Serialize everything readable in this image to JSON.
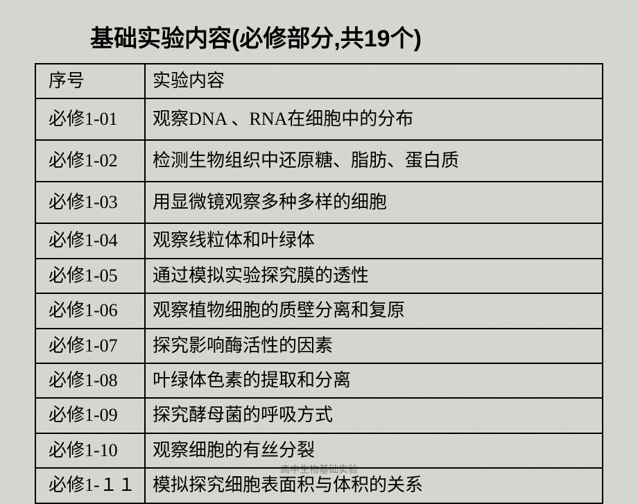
{
  "title": "基础实验内容(必修部分,共19个)",
  "columns": [
    "序号",
    "实验内容"
  ],
  "rows": [
    {
      "id": "必修1-01",
      "content": "观察DNA 、RNA在细胞中的分布",
      "height": "tall"
    },
    {
      "id": "必修1-02",
      "content": "检测生物组织中还原糖、脂肪、蛋白质",
      "height": "tall"
    },
    {
      "id": "必修1-03",
      "content": "用显微镜观察多种多样的细胞",
      "height": "tall"
    },
    {
      "id": "必修1-04",
      "content": "观察线粒体和叶绿体",
      "height": "normal"
    },
    {
      "id": "必修1-05",
      "content": "通过模拟实验探究膜的透性",
      "height": "normal"
    },
    {
      "id": "必修1-06",
      "content": "观察植物细胞的质壁分离和复原",
      "height": "normal"
    },
    {
      "id": "必修1-07",
      "content": "探究影响酶活性的因素",
      "height": "normal"
    },
    {
      "id": "必修1-08",
      "content": "叶绿体色素的提取和分离",
      "height": "normal"
    },
    {
      "id": "必修1-09",
      "content": "探究酵母菌的呼吸方式",
      "height": "normal"
    },
    {
      "id": "必修1-10",
      "content": "观察细胞的有丝分裂",
      "height": "normal"
    },
    {
      "id": "必修1-１１",
      "content": "模拟探究细胞表面积与体积的关系",
      "height": "normal"
    }
  ],
  "footer": "高中生物基础实验",
  "styling": {
    "background_color": "#d8d8d3",
    "border_color": "#000000",
    "title_fontsize": 34,
    "cell_fontsize": 26,
    "col_id_width": 158
  }
}
